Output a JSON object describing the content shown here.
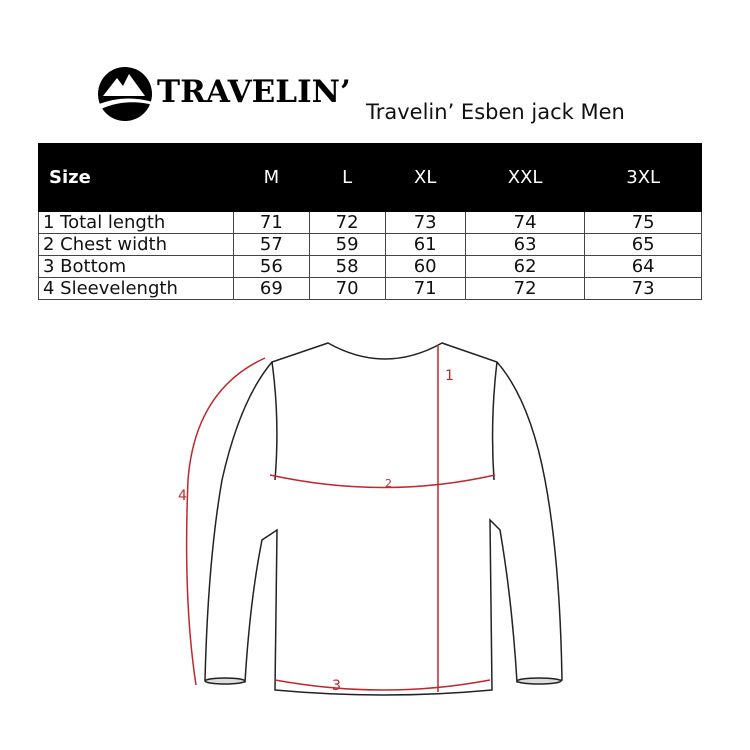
{
  "brand": {
    "name": "TRAVELIN’"
  },
  "title": "Travelin’ Esben jack Men",
  "table": {
    "headers": [
      "Size",
      "M",
      "L",
      "XL",
      "XXL",
      "3XL"
    ],
    "rows": [
      [
        "1 Total length",
        "71",
        "72",
        "73",
        "74",
        "75"
      ],
      [
        "2 Chest width",
        "57",
        "59",
        "61",
        "63",
        "65"
      ],
      [
        "3 Bottom",
        "56",
        "58",
        "60",
        "62",
        "64"
      ],
      [
        "4 Sleevelength",
        "69",
        "70",
        "71",
        "72",
        "73"
      ]
    ]
  },
  "diagram": {
    "labels": [
      "1",
      "2",
      "3",
      "4"
    ],
    "measure_color": "#c0272d"
  }
}
